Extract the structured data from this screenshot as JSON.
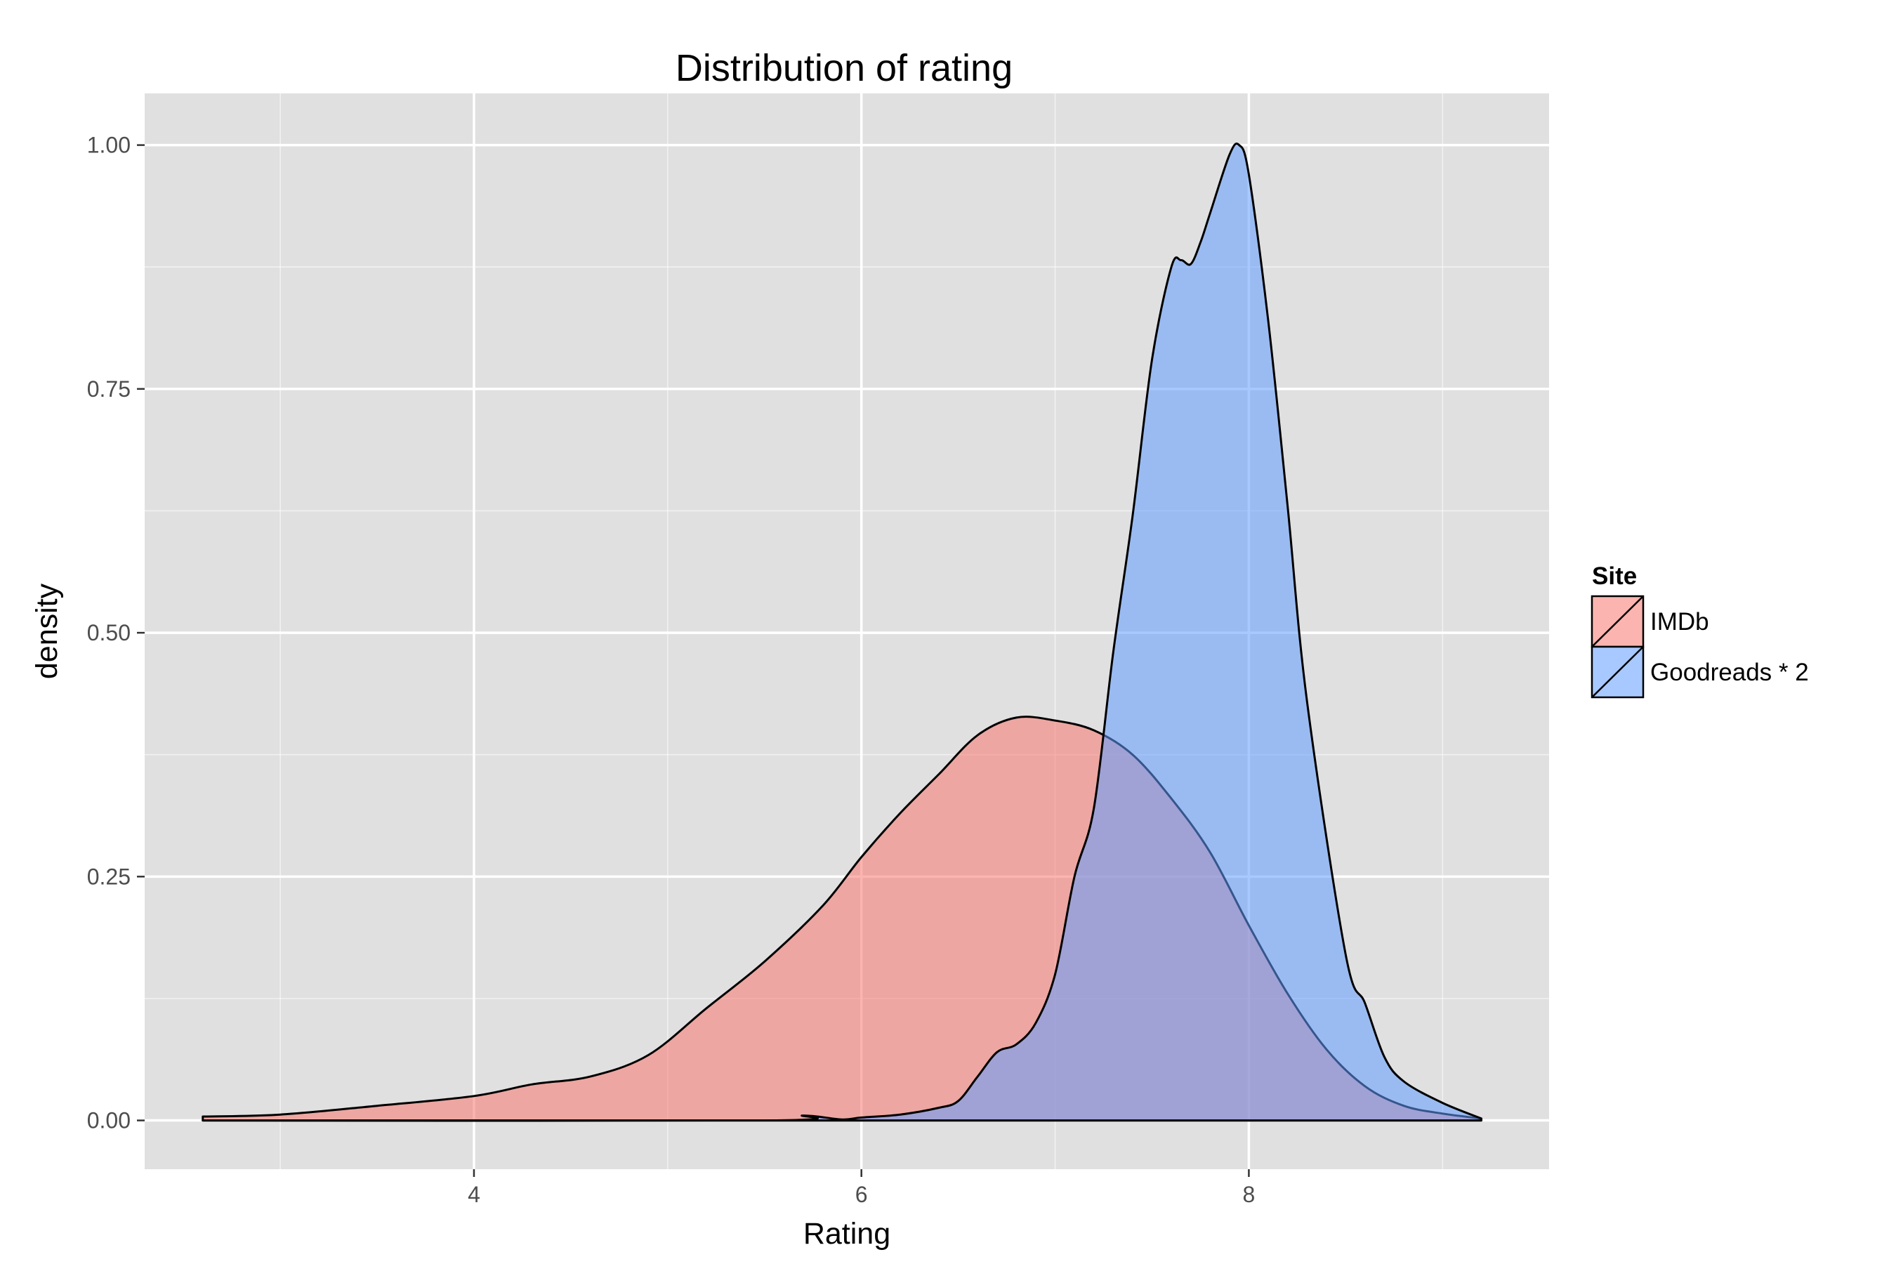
{
  "chart_data": {
    "type": "area",
    "subtype": "density",
    "title": "Distribution of rating",
    "xlabel": "Rating",
    "ylabel": "density",
    "xlim": [
      2.3,
      9.55
    ],
    "ylim": [
      -0.05,
      1.053
    ],
    "x_ticks": [
      4,
      6,
      8
    ],
    "x_tick_labels": [
      "4",
      "6",
      "8"
    ],
    "y_ticks": [
      0,
      0.25,
      0.5,
      0.75,
      1
    ],
    "y_tick_labels": [
      "0.00",
      "0.25",
      "0.50",
      "0.75",
      "1.00"
    ],
    "grid": true,
    "panel_background": "#e0e0e0",
    "grid_color": "#ffffff",
    "legend": {
      "title": "Site",
      "placement": "right",
      "entries": [
        "IMDb",
        "Goodreads * 2"
      ]
    },
    "series": [
      {
        "name": "IMDb",
        "color": "#f8766d",
        "x": [
          2.6,
          3.0,
          3.5,
          4.0,
          4.3,
          4.6,
          4.9,
          5.2,
          5.5,
          5.8,
          6.0,
          6.2,
          6.4,
          6.6,
          6.8,
          7.0,
          7.2,
          7.4,
          7.6,
          7.8,
          8.0,
          8.2,
          8.4,
          8.6,
          8.8,
          9.0,
          9.2
        ],
        "values": [
          0.004,
          0.006,
          0.015,
          0.025,
          0.037,
          0.045,
          0.067,
          0.115,
          0.163,
          0.22,
          0.27,
          0.315,
          0.355,
          0.395,
          0.413,
          0.41,
          0.4,
          0.375,
          0.33,
          0.275,
          0.2,
          0.13,
          0.073,
          0.035,
          0.015,
          0.007,
          0.002
        ]
      },
      {
        "name": "Goodreads * 2",
        "color": "#619cff",
        "x": [
          2.6,
          5.5,
          5.7,
          5.9,
          6.0,
          6.2,
          6.4,
          6.5,
          6.6,
          6.7,
          6.8,
          6.9,
          7.0,
          7.1,
          7.2,
          7.3,
          7.4,
          7.5,
          7.6,
          7.65,
          7.7,
          7.75,
          7.8,
          7.9,
          7.95,
          8.0,
          8.1,
          8.2,
          8.3,
          8.5,
          8.6,
          8.7,
          8.8,
          9.0,
          9.2
        ],
        "values": [
          0.0,
          0.0,
          0.005,
          0.001,
          0.003,
          0.006,
          0.013,
          0.02,
          0.045,
          0.07,
          0.078,
          0.1,
          0.15,
          0.25,
          0.32,
          0.48,
          0.62,
          0.78,
          0.875,
          0.882,
          0.878,
          0.9,
          0.93,
          0.99,
          1.0,
          0.97,
          0.82,
          0.63,
          0.43,
          0.17,
          0.12,
          0.065,
          0.04,
          0.018,
          0.002
        ]
      }
    ]
  }
}
